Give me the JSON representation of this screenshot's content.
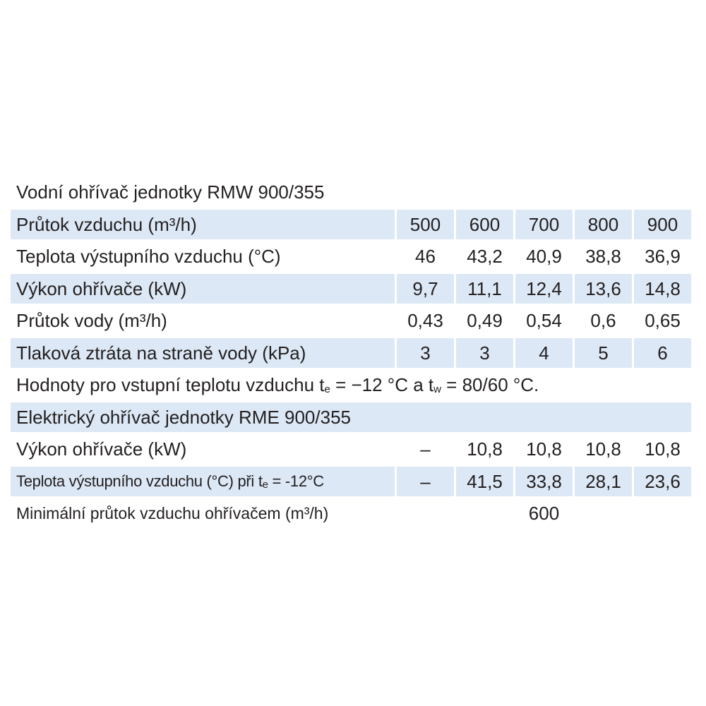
{
  "title1": "Vodní ohřívač jednotky RMW 900/355",
  "table1": {
    "rows": [
      [
        "Průtok vzduchu (m³/h)",
        "500",
        "600",
        "700",
        "800",
        "900"
      ],
      [
        "Teplota výstupního vzduchu (°C)",
        "46",
        "43,2",
        "40,9",
        "38,8",
        "36,9"
      ],
      [
        "Výkon ohřívače (kW)",
        "9,7",
        "11,1",
        "12,4",
        "13,6",
        "14,8"
      ],
      [
        "Průtok vody (m³/h)",
        "0,43",
        "0,49",
        "0,54",
        "0,6",
        "0,65"
      ],
      [
        "Tlaková ztráta na straně vody (kPa)",
        "3",
        "3",
        "4",
        "5",
        "6"
      ]
    ]
  },
  "note": [
    "Hodnoty pro vstupní teplotu vzduchu t",
    "e",
    " = −12 °C a t",
    "w",
    " = 80/60 °C."
  ],
  "title2": "Elektrický ohřívač jednotky RME 900/355",
  "table2": {
    "rows": [
      [
        "Výkon ohřívače (kW)",
        "–",
        "10,8",
        "10,8",
        "10,8",
        "10,8"
      ],
      [
        [
          "Teplota výstupního vzduchu (°C) při t",
          "e",
          " = -12°C"
        ],
        "–",
        "41,5",
        "33,8",
        "28,1",
        "23,6"
      ]
    ]
  },
  "footer": {
    "label": "Minimální průtok vzduchu ohřívačem (m³/h)",
    "value": "600"
  }
}
